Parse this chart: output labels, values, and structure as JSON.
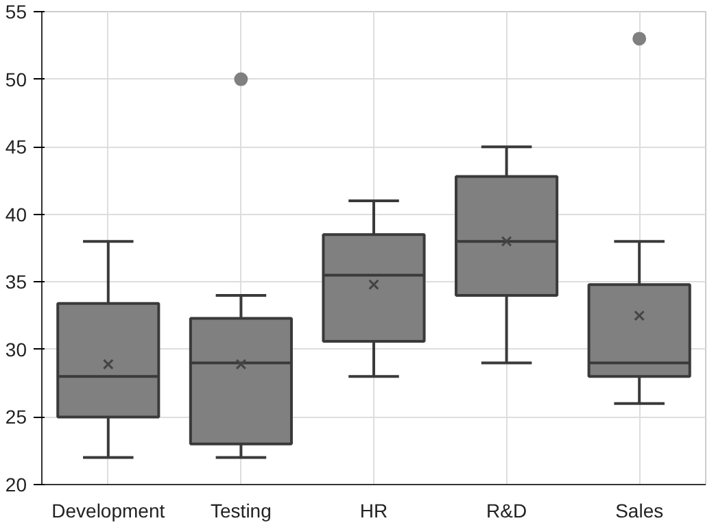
{
  "chart_data": {
    "type": "box",
    "categories": [
      "Development",
      "Testing",
      "HR",
      "R&D",
      "Sales"
    ],
    "color": "#808080",
    "boxes": [
      {
        "low": 22,
        "q1": 25,
        "median": 28,
        "q3": 33.4,
        "high": 38,
        "mean": 28.9
      },
      {
        "low": 22,
        "q1": 23,
        "median": 29,
        "q3": 32.3,
        "high": 34,
        "mean": 28.9,
        "outliers": [
          50
        ]
      },
      {
        "low": 28,
        "q1": 30.6,
        "median": 35.5,
        "q3": 38.5,
        "high": 41,
        "mean": 34.8
      },
      {
        "low": 29,
        "q1": 34,
        "median": 38,
        "q3": 42.8,
        "high": 45,
        "mean": 38
      },
      {
        "low": 26,
        "q1": 28,
        "median": 29,
        "q3": 34.8,
        "high": 38,
        "mean": 32.5,
        "outliers": [
          53
        ]
      }
    ],
    "ylim": [
      20,
      55
    ],
    "yticks": [
      20,
      25,
      30,
      35,
      40,
      45,
      50,
      55
    ],
    "grid": true
  }
}
